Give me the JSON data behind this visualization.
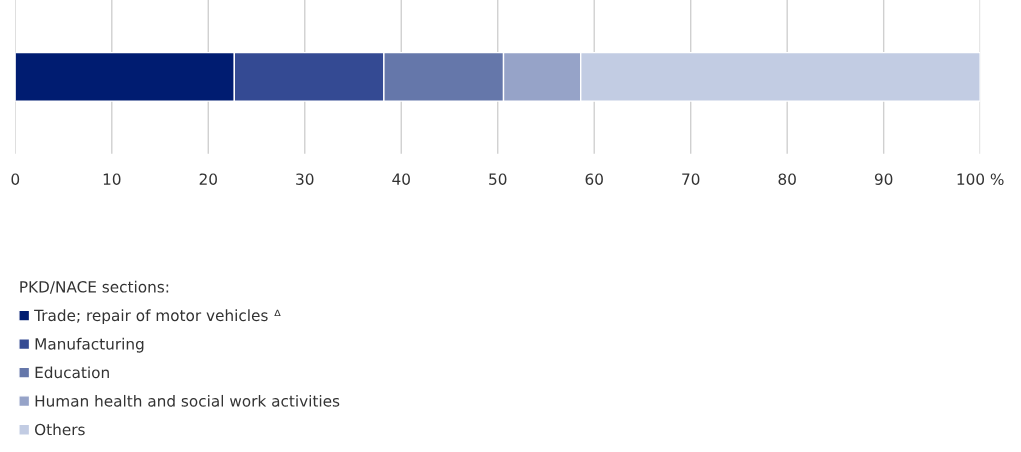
{
  "chart_data": {
    "type": "bar",
    "orientation": "horizontal",
    "stacked": true,
    "categories": [
      null
    ],
    "series": [
      {
        "name": "Trade; repair of motor vehicles ᐞ",
        "color": "#001c71",
        "values": [
          22.7
        ]
      },
      {
        "name": "Manufacturing",
        "color": "#344a93",
        "values": [
          15.5
        ]
      },
      {
        "name": "Education",
        "color": "#6577aa",
        "values": [
          12.4
        ]
      },
      {
        "name": "Human health and social work activities",
        "color": "#96a3c8",
        "values": [
          8.0
        ]
      },
      {
        "name": "Others",
        "color": "#c2cce3",
        "values": [
          41.4
        ]
      }
    ],
    "legend_title": "PKD/NACE sections:",
    "legend": "bottom left",
    "xlim": [
      0,
      100
    ],
    "xticks": [
      0,
      10,
      20,
      30,
      40,
      50,
      60,
      70,
      80,
      90,
      {
        "value": 100,
        "label": "100 %"
      }
    ],
    "grid": "x"
  }
}
